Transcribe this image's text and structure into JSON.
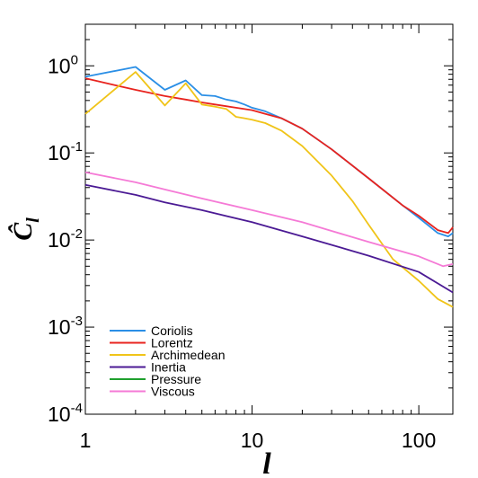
{
  "chart_data": {
    "type": "line",
    "title": "",
    "xlabel": "l",
    "ylabel": "Ĉ_l",
    "xscale": "log",
    "yscale": "log",
    "xlim": [
      1,
      160
    ],
    "ylim": [
      0.0001,
      3
    ],
    "grid": false,
    "legend_position": "bottom-left",
    "x_ticks": [
      {
        "value": 1,
        "label": "1"
      },
      {
        "value": 10,
        "label": "10"
      },
      {
        "value": 100,
        "label": "100"
      }
    ],
    "y_ticks": [
      {
        "value": 1,
        "base": "10",
        "exp": "0"
      },
      {
        "value": 0.1,
        "base": "10",
        "exp": "-1"
      },
      {
        "value": 0.01,
        "base": "10",
        "exp": "-2"
      },
      {
        "value": 0.001,
        "base": "10",
        "exp": "-3"
      },
      {
        "value": 0.0001,
        "base": "10",
        "exp": "-4"
      }
    ],
    "series": [
      {
        "name": "Coriolis",
        "color": "#2b8fe6",
        "x": [
          1,
          2,
          3,
          4,
          5,
          6,
          7,
          8,
          9,
          10,
          12,
          15,
          20,
          30,
          50,
          80,
          100,
          130,
          150,
          160
        ],
        "y": [
          0.75,
          0.97,
          0.53,
          0.68,
          0.46,
          0.45,
          0.41,
          0.39,
          0.36,
          0.33,
          0.3,
          0.25,
          0.19,
          0.11,
          0.051,
          0.025,
          0.018,
          0.012,
          0.011,
          0.012
        ]
      },
      {
        "name": "Lorentz",
        "color": "#e8231e",
        "x": [
          1,
          1.5,
          2,
          3,
          4,
          5,
          6,
          8,
          10,
          12,
          15,
          20,
          30,
          50,
          80,
          100,
          130,
          150,
          160
        ],
        "y": [
          0.72,
          0.6,
          0.53,
          0.45,
          0.41,
          0.38,
          0.36,
          0.33,
          0.31,
          0.28,
          0.25,
          0.19,
          0.11,
          0.051,
          0.025,
          0.019,
          0.013,
          0.012,
          0.014
        ]
      },
      {
        "name": "Archimedean",
        "color": "#f0c419",
        "x": [
          1,
          2,
          3,
          4,
          5,
          6,
          7,
          8,
          9,
          10,
          12,
          15,
          20,
          30,
          40,
          50,
          70,
          100,
          130,
          160
        ],
        "y": [
          0.28,
          0.85,
          0.35,
          0.63,
          0.36,
          0.34,
          0.32,
          0.26,
          0.25,
          0.24,
          0.22,
          0.18,
          0.12,
          0.055,
          0.028,
          0.015,
          0.006,
          0.0034,
          0.0021,
          0.0017
        ]
      },
      {
        "name": "Inertia",
        "color": "#4b1a94",
        "x": [
          1,
          2,
          3,
          5,
          10,
          20,
          50,
          100,
          160
        ],
        "y": [
          0.043,
          0.033,
          0.027,
          0.022,
          0.016,
          0.011,
          0.0066,
          0.0043,
          0.0025
        ]
      },
      {
        "name": "Pressure",
        "color": "#1fa02e",
        "x": [],
        "y": []
      },
      {
        "name": "Viscous",
        "color": "#f57ad6",
        "x": [
          1,
          2,
          3,
          5,
          10,
          20,
          50,
          100,
          140,
          160
        ],
        "y": [
          0.06,
          0.046,
          0.038,
          0.03,
          0.022,
          0.016,
          0.0095,
          0.0065,
          0.005,
          0.0053
        ]
      }
    ]
  }
}
